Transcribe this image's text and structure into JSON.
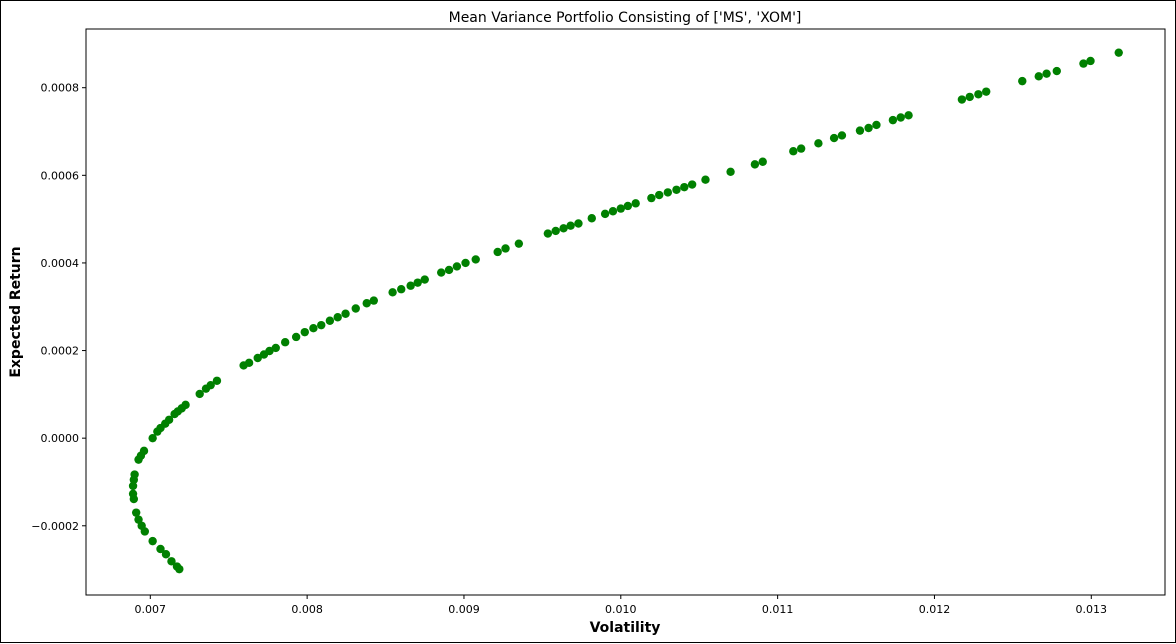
{
  "chart_data": {
    "type": "scatter",
    "title": "Mean Variance Portfolio Consisting of ['MS', 'XOM']",
    "xlabel": "Volatility",
    "ylabel": "Expected Return",
    "xlim": [
      0.00659,
      0.01347
    ],
    "ylim": [
      -0.000358,
      0.000934
    ],
    "x_ticks": [
      0.007,
      0.008,
      0.009,
      0.01,
      0.011,
      0.012,
      0.013
    ],
    "x_tick_labels": [
      "0.007",
      "0.008",
      "0.009",
      "0.010",
      "0.011",
      "0.012",
      "0.013"
    ],
    "y_ticks": [
      -0.0002,
      0.0,
      0.0002,
      0.0004,
      0.0006,
      0.0008
    ],
    "y_tick_labels": [
      "−0.0002",
      "0.0000",
      "0.0002",
      "0.0004",
      "0.0006",
      "0.0008"
    ],
    "grid": false,
    "marker_color": "#008000",
    "points": [
      [
        0.007185,
        -0.000299
      ],
      [
        0.00717,
        -0.000293
      ],
      [
        0.007135,
        -0.000281
      ],
      [
        0.0071,
        -0.000265
      ],
      [
        0.007065,
        -0.000253
      ],
      [
        0.007015,
        -0.000235
      ],
      [
        0.006965,
        -0.000213
      ],
      [
        0.006945,
        -0.0002
      ],
      [
        0.006925,
        -0.000186
      ],
      [
        0.00691,
        -0.00017
      ],
      [
        0.006895,
        -0.000139
      ],
      [
        0.00689,
        -0.000127
      ],
      [
        0.00689,
        -0.000109
      ],
      [
        0.006895,
        -9.5e-05
      ],
      [
        0.0069,
        -8.3e-05
      ],
      [
        0.006925,
        -4.9e-05
      ],
      [
        0.00694,
        -4e-05
      ],
      [
        0.00696,
        -2.9e-05
      ],
      [
        0.007015,
        -0.0
      ],
      [
        0.007045,
        1.5e-05
      ],
      [
        0.007065,
        2.3e-05
      ],
      [
        0.007095,
        3.3e-05
      ],
      [
        0.00712,
        4.2e-05
      ],
      [
        0.007155,
        5.5e-05
      ],
      [
        0.007175,
        6.1e-05
      ],
      [
        0.0072,
        6.8e-05
      ],
      [
        0.007225,
        7.6e-05
      ],
      [
        0.007315,
        0.000101
      ],
      [
        0.007355,
        0.000113
      ],
      [
        0.007385,
        0.000121
      ],
      [
        0.007425,
        0.000131
      ],
      [
        0.007595,
        0.000166
      ],
      [
        0.00763,
        0.000172
      ],
      [
        0.007685,
        0.000183
      ],
      [
        0.007725,
        0.000191
      ],
      [
        0.00776,
        0.000199
      ],
      [
        0.0078,
        0.000206
      ],
      [
        0.00786,
        0.000219
      ],
      [
        0.00793,
        0.000231
      ],
      [
        0.007985,
        0.000242
      ],
      [
        0.00804,
        0.000251
      ],
      [
        0.00809,
        0.000258
      ],
      [
        0.008145,
        0.000268
      ],
      [
        0.008195,
        0.000276
      ],
      [
        0.008245,
        0.000284
      ],
      [
        0.00831,
        0.000296
      ],
      [
        0.00838,
        0.000308
      ],
      [
        0.008425,
        0.000314
      ],
      [
        0.008545,
        0.000333
      ],
      [
        0.0086,
        0.00034
      ],
      [
        0.00866,
        0.000348
      ],
      [
        0.008705,
        0.000355
      ],
      [
        0.00875,
        0.000362
      ],
      [
        0.008855,
        0.000378
      ],
      [
        0.008905,
        0.000384
      ],
      [
        0.008955,
        0.000392
      ],
      [
        0.00901,
        0.0004
      ],
      [
        0.009075,
        0.000408
      ],
      [
        0.009215,
        0.000425
      ],
      [
        0.009265,
        0.000433
      ],
      [
        0.00935,
        0.000444
      ],
      [
        0.009535,
        0.000467
      ],
      [
        0.009585,
        0.000473
      ],
      [
        0.009635,
        0.000479
      ],
      [
        0.00968,
        0.000485
      ],
      [
        0.00973,
        0.00049
      ],
      [
        0.009815,
        0.000502
      ],
      [
        0.0099,
        0.000512
      ],
      [
        0.00995,
        0.000518
      ],
      [
        0.01,
        0.000524
      ],
      [
        0.010045,
        0.00053
      ],
      [
        0.010095,
        0.000536
      ],
      [
        0.010195,
        0.000548
      ],
      [
        0.010245,
        0.000555
      ],
      [
        0.0103,
        0.000561
      ],
      [
        0.010355,
        0.000567
      ],
      [
        0.010405,
        0.000573
      ],
      [
        0.010455,
        0.000579
      ],
      [
        0.01054,
        0.00059
      ],
      [
        0.0107,
        0.000608
      ],
      [
        0.010855,
        0.000625
      ],
      [
        0.010905,
        0.000631
      ],
      [
        0.0111,
        0.000655
      ],
      [
        0.01115,
        0.000661
      ],
      [
        0.01126,
        0.000673
      ],
      [
        0.01136,
        0.000685
      ],
      [
        0.01141,
        0.000691
      ],
      [
        0.011525,
        0.000702
      ],
      [
        0.01158,
        0.000708
      ],
      [
        0.01163,
        0.000715
      ],
      [
        0.011735,
        0.000726
      ],
      [
        0.011785,
        0.000732
      ],
      [
        0.011835,
        0.000737
      ],
      [
        0.012175,
        0.000773
      ],
      [
        0.012225,
        0.000779
      ],
      [
        0.01228,
        0.000785
      ],
      [
        0.01233,
        0.000791
      ],
      [
        0.01256,
        0.000815
      ],
      [
        0.012665,
        0.000826
      ],
      [
        0.012715,
        0.000832
      ],
      [
        0.01278,
        0.000838
      ],
      [
        0.01295,
        0.000855
      ],
      [
        0.012995,
        0.000861
      ],
      [
        0.013175,
        0.00088
      ]
    ]
  }
}
